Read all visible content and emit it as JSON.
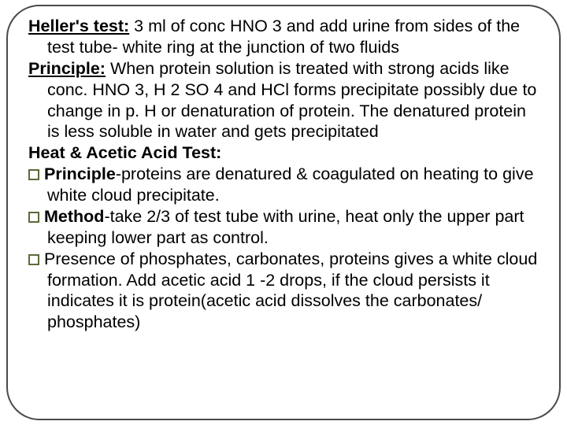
{
  "text_color": "#000000",
  "bullet_border": "#5a6b3a",
  "frame_color": "#4a4a4a",
  "p1_label": "Heller's test:",
  "p1_body": " 3 ml of conc HNO 3 and add urine from sides of the test tube- white ring at the junction of two fluids",
  "p2_label": "Principle:",
  "p2_body": " When protein solution is treated with strong acids like conc. HNO 3, H 2 SO 4 and HCl forms precipitate possibly due to change in p. H or denaturation of protein. The denatured protein is less soluble in water and gets precipitated",
  "p3_label": "Heat & Acetic Acid Test:",
  "p4_label": "Principle",
  "p4_body": "-proteins are denatured & coagulated on heating to give white cloud precipitate.",
  "p5_label": "Method",
  "p5_body": "-take 2/3 of test tube with urine, heat only the upper part keeping lower part as control.",
  "p6_body": "Presence of phosphates, carbonates, proteins gives a white cloud formation. Add acetic acid 1 -2 drops, if the cloud persists it indicates it is protein(acetic acid dissolves the carbonates/ phosphates)"
}
